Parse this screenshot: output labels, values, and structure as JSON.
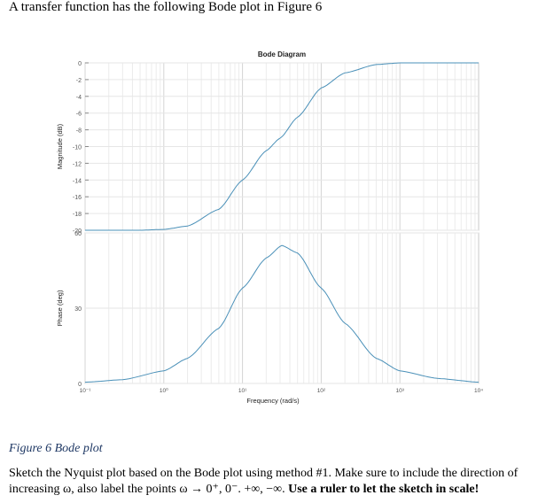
{
  "document": {
    "heading": "A transfer function has the following Bode plot in Figure 6",
    "caption": "Figure 6 Bode plot",
    "paragraph": {
      "line1": "Sketch the Nyquist plot based on the Bode plot using method #1. Make sure to include the direction of",
      "line2_prefix": "increasing ω, also label the points ω → 0⁺, 0⁻. +∞, −∞.",
      "line2_bold": "Use a ruler to let the sketch in scale!"
    }
  },
  "chart_data": [
    {
      "type": "line",
      "title": "Bode Diagram",
      "xlabel": "",
      "ylabel": "Magnitude (dB)",
      "xscale": "log",
      "xlim": [
        0.1,
        10000
      ],
      "ylim": [
        -20,
        0
      ],
      "grid": true,
      "yticks": [
        "0",
        "-2",
        "-4",
        "-6",
        "-8",
        "-10",
        "-12",
        "-14",
        "-16",
        "-18",
        "-20"
      ],
      "color": "#4a90b8",
      "x": [
        0.1,
        0.5,
        1,
        2,
        5,
        10,
        20,
        30,
        50,
        100,
        200,
        500,
        1000,
        10000
      ],
      "y": [
        -20,
        -20,
        -19.9,
        -19.5,
        -17.5,
        -14,
        -10.5,
        -9,
        -6.5,
        -3,
        -1.2,
        -0.2,
        0,
        0
      ]
    },
    {
      "type": "line",
      "title": "",
      "xlabel": "Frequency  (rad/s)",
      "ylabel": "Phase (deg)",
      "xscale": "log",
      "xlim": [
        0.1,
        10000
      ],
      "ylim": [
        0,
        60
      ],
      "grid": true,
      "yticks": [
        "60",
        "30",
        "0"
      ],
      "xticks": [
        "10⁻¹",
        "10⁰",
        "10¹",
        "10²",
        "10³",
        "10⁴"
      ],
      "color": "#4a90b8",
      "x": [
        0.1,
        0.3,
        1,
        2,
        5,
        10,
        20,
        31.6,
        50,
        100,
        200,
        500,
        1000,
        3000,
        10000
      ],
      "y": [
        0.5,
        1.5,
        5,
        10,
        22,
        38,
        50,
        55,
        52,
        38,
        24,
        10,
        5,
        2,
        0.5
      ]
    }
  ]
}
